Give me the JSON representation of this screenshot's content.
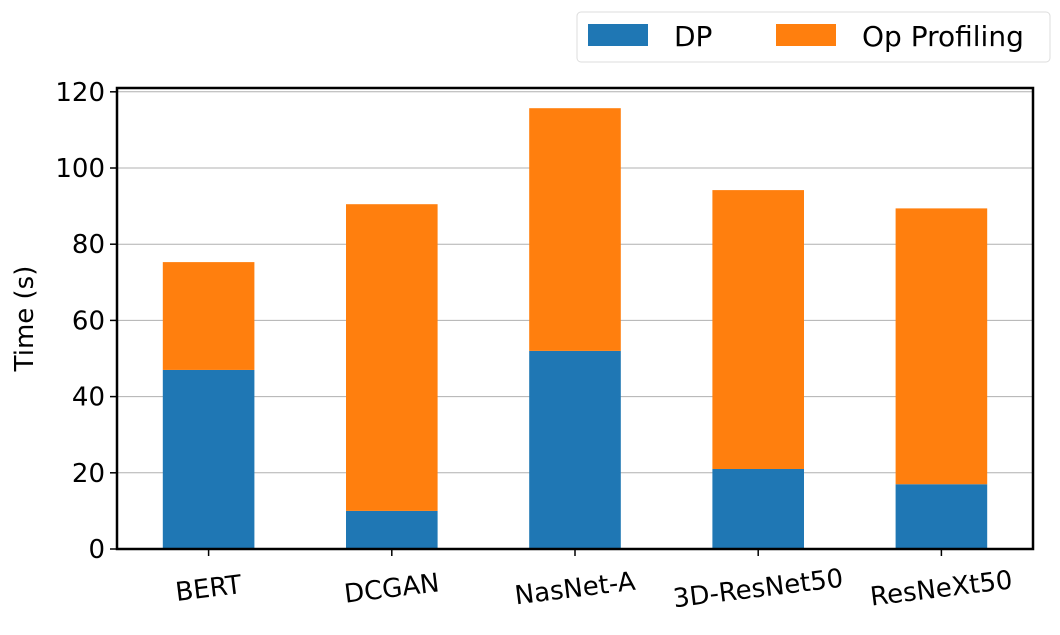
{
  "chart_data": {
    "type": "bar",
    "stacked": true,
    "categories": [
      "BERT",
      "DCGAN",
      "NasNet-A",
      "3D-ResNet50",
      "ResNeXt50"
    ],
    "series": [
      {
        "name": "DP",
        "color": "#1f77b4",
        "values": [
          47,
          10,
          52,
          21,
          17
        ]
      },
      {
        "name": "Op Profiling",
        "color": "#ff7f0e",
        "values": [
          28.3,
          80.5,
          63.7,
          73.2,
          72.4
        ]
      }
    ],
    "ylabel": "Time (s)",
    "ylim": [
      0,
      121
    ],
    "yticks": [
      0,
      20,
      40,
      60,
      80,
      100,
      120
    ],
    "grid": "y",
    "legend_position": "top-right"
  }
}
